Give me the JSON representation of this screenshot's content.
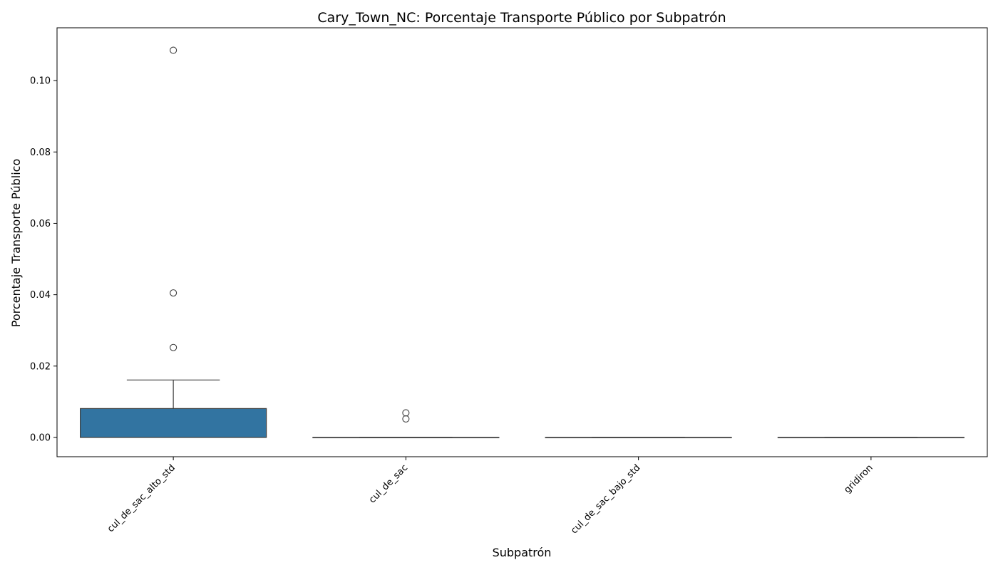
{
  "chart_data": {
    "type": "box",
    "title": "Cary_Town_NC: Porcentaje Transporte Público por Subpatrón",
    "xlabel": "Subpatrón",
    "ylabel": "Porcentaje Transporte Público",
    "categories": [
      "cul_de_sac_alto_std",
      "cul_de_sac",
      "cul_de_sac_bajo_std",
      "gridiron"
    ],
    "ylim": [
      -0.0054,
      0.1148
    ],
    "yticks": [
      0.0,
      0.02,
      0.04,
      0.06,
      0.08,
      0.1
    ],
    "ytick_labels": [
      "0.00",
      "0.02",
      "0.04",
      "0.06",
      "0.08",
      "0.10"
    ],
    "grid": false,
    "boxes": [
      {
        "category": "cul_de_sac_alto_std",
        "whisker_low": 0.0,
        "q1": 0.0,
        "median": 0.0,
        "q3": 0.0081,
        "whisker_high": 0.0161,
        "outliers": [
          0.0252,
          0.0405,
          0.1085
        ]
      },
      {
        "category": "cul_de_sac",
        "whisker_low": 0.0,
        "q1": 0.0,
        "median": 0.0,
        "q3": 0.0,
        "whisker_high": 0.0,
        "outliers": [
          0.0052,
          0.0069
        ]
      },
      {
        "category": "cul_de_sac_bajo_std",
        "whisker_low": 0.0,
        "q1": 0.0,
        "median": 0.0,
        "q3": 0.0,
        "whisker_high": 0.0,
        "outliers": []
      },
      {
        "category": "gridiron",
        "whisker_low": 0.0,
        "q1": 0.0,
        "median": 0.0,
        "q3": 0.0,
        "whisker_high": 0.0,
        "outliers": []
      }
    ],
    "colors": {
      "box_fill": "#3274a1",
      "line": "#3f3f3f",
      "axis": "#000000"
    }
  }
}
